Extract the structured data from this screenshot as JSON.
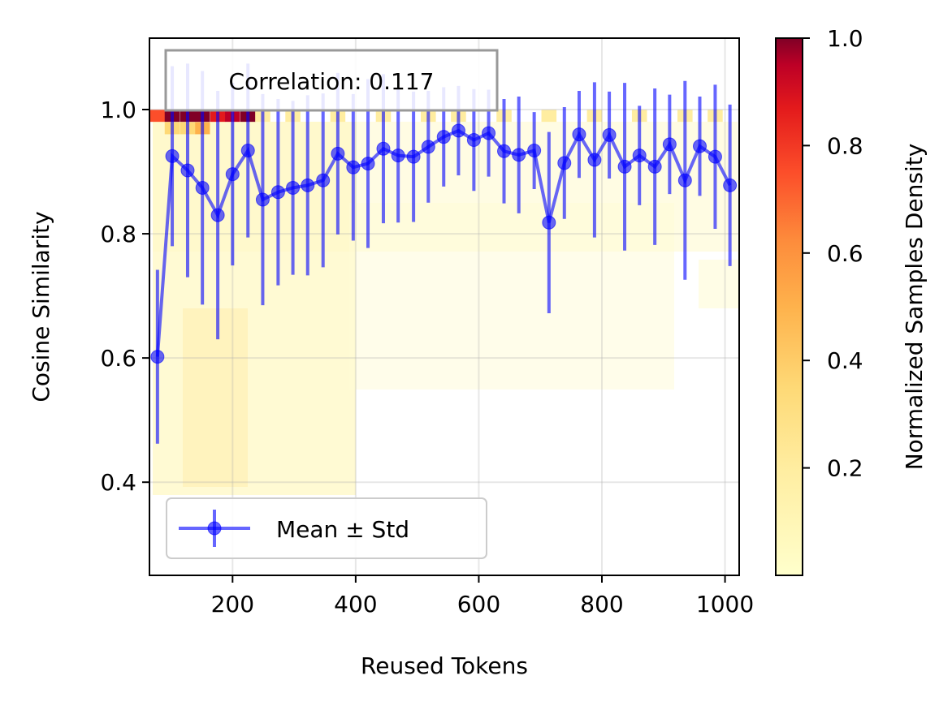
{
  "chart_data": {
    "type": "scatter",
    "xlabel": "Reused Tokens",
    "ylabel": "Cosine Similarity",
    "xlim": [
      65,
      1023
    ],
    "ylim": [
      0.25,
      1.115
    ],
    "xticks": [
      200,
      400,
      600,
      800,
      1000
    ],
    "yticks": [
      0.4,
      0.6,
      0.8,
      1.0
    ],
    "grid": true,
    "annotation": "Correlation: 0.117",
    "legend": {
      "placement": "bottom-left",
      "entries": [
        "Mean ± Std"
      ]
    },
    "colorbar": {
      "label": "Normalized Samples Density",
      "range": [
        0.0,
        1.0
      ],
      "ticks": [
        0.2,
        0.4,
        0.6,
        0.8,
        1.0
      ],
      "colormap": "YlOrRd"
    },
    "series": [
      {
        "name": "Mean ± Std",
        "color": "#0000ff",
        "x": [
          78,
          102,
          127,
          151,
          176,
          200,
          225,
          249,
          274,
          298,
          322,
          347,
          371,
          396,
          420,
          445,
          469,
          494,
          518,
          543,
          567,
          592,
          616,
          641,
          665,
          690,
          714,
          739,
          763,
          788,
          812,
          837,
          861,
          886,
          910,
          935,
          959,
          984,
          1008
        ],
        "y": [
          0.602,
          0.925,
          0.902,
          0.874,
          0.83,
          0.896,
          0.934,
          0.855,
          0.867,
          0.874,
          0.878,
          0.886,
          0.929,
          0.907,
          0.913,
          0.937,
          0.926,
          0.924,
          0.94,
          0.956,
          0.966,
          0.951,
          0.962,
          0.933,
          0.927,
          0.934,
          0.818,
          0.914,
          0.96,
          0.919,
          0.959,
          0.908,
          0.926,
          0.908,
          0.944,
          0.886,
          0.941,
          0.924,
          0.878
        ],
        "std": [
          0.14,
          0.145,
          0.172,
          0.188,
          0.2,
          0.147,
          0.14,
          0.17,
          0.15,
          0.14,
          0.145,
          0.14,
          0.13,
          0.118,
          0.136,
          0.12,
          0.108,
          0.105,
          0.09,
          0.08,
          0.072,
          0.082,
          0.07,
          0.084,
          0.094,
          0.062,
          0.146,
          0.09,
          0.07,
          0.125,
          0.07,
          0.135,
          0.08,
          0.126,
          0.08,
          0.16,
          0.08,
          0.116,
          0.13
        ]
      }
    ],
    "density": {
      "x_edges_step": 24.5,
      "y_edges_step": 0.0195,
      "cells": [
        [
          78,
          0.99,
          0.6
        ],
        [
          102,
          0.99,
          0.95
        ],
        [
          127,
          0.99,
          1.0
        ],
        [
          151,
          0.99,
          0.95
        ],
        [
          176,
          0.99,
          0.75
        ],
        [
          200,
          0.99,
          0.9
        ],
        [
          225,
          0.99,
          1.0
        ],
        [
          151,
          0.97,
          0.35
        ],
        [
          102,
          0.97,
          0.25
        ],
        [
          127,
          0.97,
          0.3
        ],
        [
          249,
          0.99,
          0.12
        ],
        [
          298,
          0.99,
          0.1
        ],
        [
          371,
          0.99,
          0.1
        ],
        [
          445,
          0.99,
          0.1
        ],
        [
          518,
          0.99,
          0.1
        ],
        [
          567,
          0.99,
          0.12
        ],
        [
          641,
          0.99,
          0.1
        ],
        [
          714,
          0.99,
          0.1
        ],
        [
          788,
          0.99,
          0.1
        ],
        [
          861,
          0.99,
          0.08
        ],
        [
          935,
          0.99,
          0.08
        ],
        [
          984,
          0.99,
          0.08
        ]
      ]
    }
  }
}
